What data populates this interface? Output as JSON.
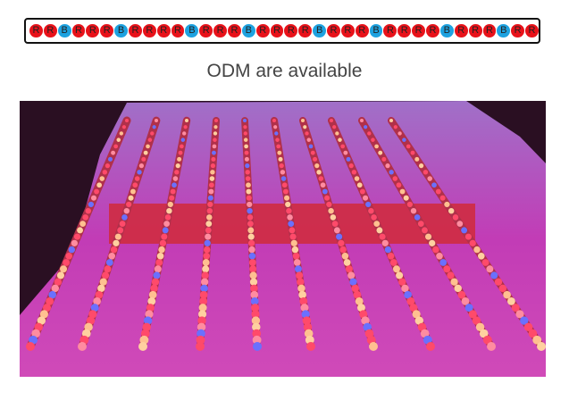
{
  "led_strip": {
    "sequence": [
      "R",
      "R",
      "B",
      "R",
      "R",
      "R",
      "B",
      "R",
      "R",
      "R",
      "R",
      "B",
      "R",
      "R",
      "R",
      "B",
      "R",
      "R",
      "R",
      "R",
      "B",
      "R",
      "R",
      "R",
      "B",
      "R",
      "R",
      "R",
      "R",
      "B",
      "R",
      "R",
      "R",
      "B",
      "R",
      "R"
    ],
    "colors": {
      "R": "#e8121a",
      "B": "#1ea2e0"
    }
  },
  "caption": "ODM are available",
  "photo": {
    "subject": "LED grow light bars",
    "bar_count": 10,
    "colors": {
      "floor": "#c040b0",
      "background": "#2a0f22",
      "driver": "#d02a3a"
    }
  }
}
